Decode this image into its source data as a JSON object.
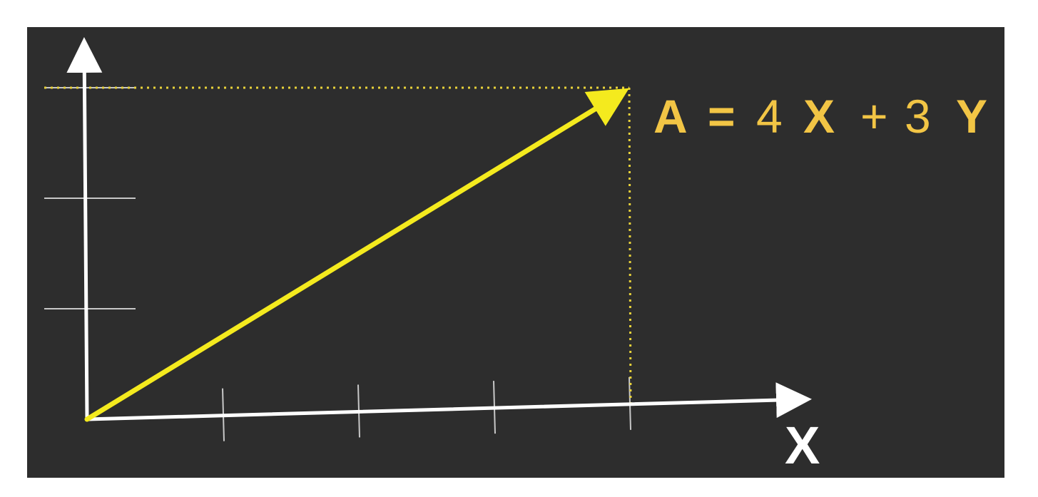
{
  "diagram": {
    "equation": {
      "vector": "A",
      "equals": "=",
      "x_coefficient": "4",
      "x_basis": "X",
      "plus": "+",
      "y_coefficient": "3",
      "y_basis": "Y"
    },
    "x_axis_label": "X",
    "vector_components": {
      "x": 4,
      "y": 3
    },
    "x_axis_ticks": [
      1,
      2,
      3,
      4
    ],
    "y_axis_ticks": [
      1,
      2,
      3
    ],
    "colors": {
      "board": "#2d2d2d",
      "axes": "#ffffff",
      "ticks": "#c8c8c8",
      "vector": "#f4ea1e",
      "guides": "#e8d23a",
      "equation": "#f2c545"
    }
  }
}
